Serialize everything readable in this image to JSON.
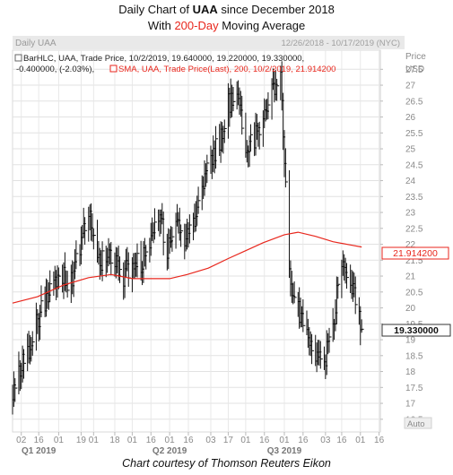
{
  "header": {
    "line1_prefix": "Daily Chart of ",
    "line1_ticker": "UAA",
    "line1_suffix": " since December 2018",
    "line2_prefix": "With ",
    "line2_highlight": "200-Day",
    "line2_suffix": " Moving Average"
  },
  "panel": {
    "name": "Daily UAA",
    "date_range": "12/26/2018 - 10/17/2019 (NYC)",
    "axis_header_1": "Price",
    "axis_header_2": "USD",
    "auto_label": "Auto"
  },
  "legend": {
    "bar_line1": "BarHLC, UAA, Trade Price, 10/2/2019, 19.640000, 19.220000, 19.330000,",
    "bar_line2": "-0.400000, (-2.03%),",
    "sma_line": "SMA, UAA, Trade Price(Last),  200,  10/2/2019, 21.914200"
  },
  "value_tags": {
    "sma": "21.914200",
    "last": "19.330000"
  },
  "footer": "Chart courtesy of Thomson Reuters Eikon",
  "colors": {
    "sma_line": "#e8261c",
    "bars": "#111111",
    "grid": "#dcdcdc",
    "axis_text": "#8a8a8a",
    "title_highlight": "#e8261c"
  },
  "chart_data": {
    "type": "line",
    "title": "Daily Chart of UAA since December 2018 With 200-Day Moving Average",
    "ylabel": "Price USD",
    "ylim": [
      16.1,
      28.1
    ],
    "ytick_values": [
      16.5,
      17,
      17.5,
      18,
      18.5,
      19,
      19.5,
      20,
      20.5,
      21,
      21.5,
      22,
      22.5,
      23,
      23.5,
      24,
      24.5,
      25,
      25.5,
      26,
      26.5,
      27,
      27.5
    ],
    "ytick_labels": [
      "16.5",
      "17",
      "17.5",
      "18",
      "18.5",
      "19",
      "19.5",
      "20",
      "20.5",
      "21",
      "21.5",
      "22",
      "22.5",
      "23",
      "23.5",
      "24",
      "24.5",
      "25",
      "25.5",
      "26",
      "26.5",
      "27",
      "27.5"
    ],
    "xlim": [
      "2018-12-26",
      "2019-10-17"
    ],
    "x_ticks": [
      {
        "date": "2019-01-02",
        "label": "02"
      },
      {
        "date": "2019-01-16",
        "label": "16"
      },
      {
        "date": "2019-02-01",
        "label": "01"
      },
      {
        "date": "2019-02-19",
        "label": "19"
      },
      {
        "date": "2019-03-01",
        "label": "01"
      },
      {
        "date": "2019-03-18",
        "label": "18"
      },
      {
        "date": "2019-04-01",
        "label": "01"
      },
      {
        "date": "2019-04-16",
        "label": "16"
      },
      {
        "date": "2019-05-01",
        "label": "01"
      },
      {
        "date": "2019-05-16",
        "label": "16"
      },
      {
        "date": "2019-06-03",
        "label": "03"
      },
      {
        "date": "2019-06-17",
        "label": "17"
      },
      {
        "date": "2019-07-01",
        "label": "01"
      },
      {
        "date": "2019-07-16",
        "label": "16"
      },
      {
        "date": "2019-08-01",
        "label": "01"
      },
      {
        "date": "2019-08-16",
        "label": "16"
      },
      {
        "date": "2019-09-03",
        "label": "03"
      },
      {
        "date": "2019-09-16",
        "label": "16"
      },
      {
        "date": "2019-10-01",
        "label": "01"
      },
      {
        "date": "2019-10-16",
        "label": "16"
      }
    ],
    "quarter_labels": [
      {
        "date": "2019-01-16",
        "label": "Q1 2019"
      },
      {
        "date": "2019-05-01",
        "label": "Q2 2019"
      },
      {
        "date": "2019-08-01",
        "label": "Q3 2019"
      }
    ],
    "bars_close": [
      {
        "date": "2018-12-26",
        "close": 17.4
      },
      {
        "date": "2019-01-01",
        "close": 18.0
      },
      {
        "date": "2019-01-07",
        "close": 18.6
      },
      {
        "date": "2019-01-14",
        "close": 19.5
      },
      {
        "date": "2019-01-21",
        "close": 20.2
      },
      {
        "date": "2019-01-28",
        "close": 21.0
      },
      {
        "date": "2019-02-04",
        "close": 21.0
      },
      {
        "date": "2019-02-11",
        "close": 20.8
      },
      {
        "date": "2019-02-18",
        "close": 21.8
      },
      {
        "date": "2019-02-25",
        "close": 23.0
      },
      {
        "date": "2019-03-04",
        "close": 21.3
      },
      {
        "date": "2019-03-11",
        "close": 21.7
      },
      {
        "date": "2019-03-18",
        "close": 21.5
      },
      {
        "date": "2019-03-25",
        "close": 21.0
      },
      {
        "date": "2019-04-01",
        "close": 21.5
      },
      {
        "date": "2019-04-08",
        "close": 21.3
      },
      {
        "date": "2019-04-15",
        "close": 22.2
      },
      {
        "date": "2019-04-22",
        "close": 23.0
      },
      {
        "date": "2019-04-29",
        "close": 21.8
      },
      {
        "date": "2019-05-06",
        "close": 22.6
      },
      {
        "date": "2019-05-13",
        "close": 22.0
      },
      {
        "date": "2019-05-20",
        "close": 22.8
      },
      {
        "date": "2019-05-27",
        "close": 23.6
      },
      {
        "date": "2019-06-03",
        "close": 24.8
      },
      {
        "date": "2019-06-10",
        "close": 25.2
      },
      {
        "date": "2019-06-17",
        "close": 26.4
      },
      {
        "date": "2019-06-24",
        "close": 26.9
      },
      {
        "date": "2019-07-01",
        "close": 25.0
      },
      {
        "date": "2019-07-08",
        "close": 25.3
      },
      {
        "date": "2019-07-15",
        "close": 26.0
      },
      {
        "date": "2019-07-22",
        "close": 26.7
      },
      {
        "date": "2019-07-29",
        "close": 27.1
      },
      {
        "date": "2019-08-05",
        "close": 21.0
      },
      {
        "date": "2019-08-12",
        "close": 20.0
      },
      {
        "date": "2019-08-19",
        "close": 19.0
      },
      {
        "date": "2019-08-26",
        "close": 18.4
      },
      {
        "date": "2019-09-02",
        "close": 18.3
      },
      {
        "date": "2019-09-09",
        "close": 19.5
      },
      {
        "date": "2019-09-16",
        "close": 21.5
      },
      {
        "date": "2019-09-23",
        "close": 20.8
      },
      {
        "date": "2019-09-30",
        "close": 19.7
      },
      {
        "date": "2019-10-02",
        "close": 19.33
      }
    ],
    "sma_200": [
      {
        "date": "2018-12-26",
        "value": 20.15
      },
      {
        "date": "2019-01-15",
        "value": 20.35
      },
      {
        "date": "2019-02-05",
        "value": 20.72
      },
      {
        "date": "2019-02-25",
        "value": 20.95
      },
      {
        "date": "2019-03-15",
        "value": 21.05
      },
      {
        "date": "2019-04-01",
        "value": 20.92
      },
      {
        "date": "2019-05-01",
        "value": 20.92
      },
      {
        "date": "2019-05-15",
        "value": 21.05
      },
      {
        "date": "2019-06-01",
        "value": 21.25
      },
      {
        "date": "2019-06-17",
        "value": 21.55
      },
      {
        "date": "2019-07-01",
        "value": 21.8
      },
      {
        "date": "2019-07-15",
        "value": 22.05
      },
      {
        "date": "2019-08-01",
        "value": 22.3
      },
      {
        "date": "2019-08-12",
        "value": 22.38
      },
      {
        "date": "2019-08-26",
        "value": 22.25
      },
      {
        "date": "2019-09-09",
        "value": 22.08
      },
      {
        "date": "2019-09-23",
        "value": 21.98
      },
      {
        "date": "2019-10-02",
        "value": 21.9142
      }
    ]
  }
}
